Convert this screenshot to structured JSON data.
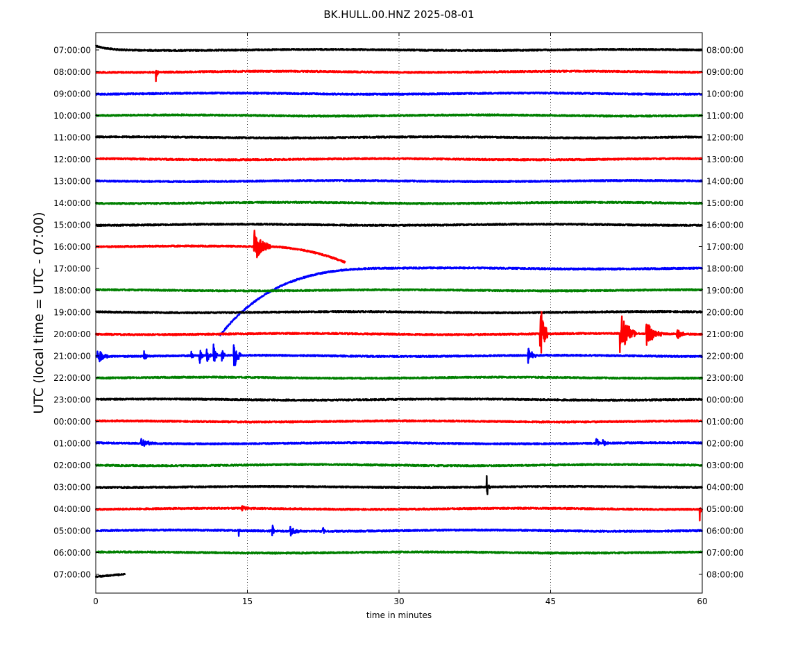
{
  "chart_data": {
    "type": "line",
    "title": "BK.HULL.00.HNZ 2025-08-01",
    "xlabel": "time in minutes",
    "ylabel": "UTC (local time = UTC - 07:00)",
    "xlim": [
      0,
      60
    ],
    "x_ticks": [
      0,
      15,
      30,
      45,
      60
    ],
    "grid": "vertical dotted lines at 15, 30, 45",
    "legend": "none",
    "colors": [
      "#000000",
      "#ff0000",
      "#0000ff",
      "#008000"
    ],
    "left_labels": [
      "07:00:00",
      "08:00:00",
      "09:00:00",
      "10:00:00",
      "11:00:00",
      "12:00:00",
      "13:00:00",
      "14:00:00",
      "15:00:00",
      "16:00:00",
      "17:00:00",
      "18:00:00",
      "19:00:00",
      "20:00:00",
      "21:00:00",
      "22:00:00",
      "23:00:00",
      "00:00:00",
      "01:00:00",
      "02:00:00",
      "03:00:00",
      "04:00:00",
      "05:00:00",
      "06:00:00",
      "07:00:00"
    ],
    "right_labels": [
      "08:00:00",
      "09:00:00",
      "10:00:00",
      "11:00:00",
      "12:00:00",
      "13:00:00",
      "14:00:00",
      "15:00:00",
      "16:00:00",
      "17:00:00",
      "18:00:00",
      "19:00:00",
      "20:00:00",
      "21:00:00",
      "22:00:00",
      "23:00:00",
      "00:00:00",
      "01:00:00",
      "02:00:00",
      "03:00:00",
      "04:00:00",
      "05:00:00",
      "06:00:00",
      "07:00:00",
      "08:00:00"
    ],
    "series": [
      {
        "label": "07:00:00",
        "color": "#000000",
        "events": []
      },
      {
        "label": "08:00:00",
        "color": "#ff0000",
        "events": [
          {
            "t": 6.0,
            "amp": 0.3,
            "dur": 0.2
          }
        ]
      },
      {
        "label": "09:00:00",
        "color": "#0000ff",
        "events": []
      },
      {
        "label": "10:00:00",
        "color": "#008000",
        "events": []
      },
      {
        "label": "11:00:00",
        "color": "#000000",
        "events": []
      },
      {
        "label": "12:00:00",
        "color": "#ff0000",
        "events": []
      },
      {
        "label": "13:00:00",
        "color": "#0000ff",
        "events": []
      },
      {
        "label": "14:00:00",
        "color": "#008000",
        "events": []
      },
      {
        "label": "15:00:00",
        "color": "#000000",
        "events": []
      },
      {
        "label": "16:00:00",
        "color": "#ff0000",
        "end_minute": 24.7,
        "events": [
          {
            "t": 15.7,
            "amp": 0.75,
            "dur": 1.6
          }
        ]
      },
      {
        "label": "17:00:00",
        "color": "#0000ff",
        "start_minute": 12.3,
        "events": []
      },
      {
        "label": "18:00:00",
        "color": "#008000",
        "events": []
      },
      {
        "label": "19:00:00",
        "color": "#000000",
        "events": []
      },
      {
        "label": "20:00:00",
        "color": "#ff0000",
        "events": [
          {
            "t": 44.0,
            "amp": 1.5,
            "dur": 0.7
          },
          {
            "t": 51.9,
            "amp": 1.1,
            "dur": 1.5
          },
          {
            "t": 54.5,
            "amp": 0.55,
            "dur": 1.5
          },
          {
            "t": 57.5,
            "amp": 0.3,
            "dur": 0.8
          }
        ]
      },
      {
        "label": "21:00:00",
        "color": "#0000ff",
        "events": [
          {
            "t": 0.2,
            "amp": 0.4,
            "dur": 1.0
          },
          {
            "t": 4.8,
            "amp": 0.2,
            "dur": 0.5
          },
          {
            "t": 9.5,
            "amp": 0.25,
            "dur": 0.2
          },
          {
            "t": 10.3,
            "amp": 0.4,
            "dur": 0.3
          },
          {
            "t": 11.0,
            "amp": 0.35,
            "dur": 0.4
          },
          {
            "t": 11.7,
            "amp": 0.45,
            "dur": 0.4
          },
          {
            "t": 12.5,
            "amp": 0.3,
            "dur": 0.3
          },
          {
            "t": 13.7,
            "amp": 0.6,
            "dur": 0.7
          },
          {
            "t": 42.8,
            "amp": 0.35,
            "dur": 0.8
          }
        ]
      },
      {
        "label": "22:00:00",
        "color": "#008000",
        "events": []
      },
      {
        "label": "23:00:00",
        "color": "#000000",
        "events": []
      },
      {
        "label": "00:00:00",
        "color": "#ff0000",
        "events": []
      },
      {
        "label": "01:00:00",
        "color": "#0000ff",
        "events": [
          {
            "t": 4.5,
            "amp": 0.2,
            "dur": 1.5
          },
          {
            "t": 49.5,
            "amp": 0.5,
            "dur": 0.3
          },
          {
            "t": 50.2,
            "amp": 0.2,
            "dur": 0.5
          }
        ]
      },
      {
        "label": "02:00:00",
        "color": "#008000",
        "events": []
      },
      {
        "label": "03:00:00",
        "color": "#000000",
        "events": [
          {
            "t": 38.7,
            "amp": 0.55,
            "dur": 0.3
          }
        ]
      },
      {
        "label": "04:00:00",
        "color": "#ff0000",
        "events": [
          {
            "t": 14.5,
            "amp": 0.12,
            "dur": 1.0
          },
          {
            "t": 59.8,
            "amp": 0.5,
            "dur": 0.2
          }
        ]
      },
      {
        "label": "05:00:00",
        "color": "#0000ff",
        "events": [
          {
            "t": 14.2,
            "amp": 0.2,
            "dur": 0.2
          },
          {
            "t": 17.5,
            "amp": 0.25,
            "dur": 0.3
          },
          {
            "t": 19.3,
            "amp": 0.22,
            "dur": 1.0
          },
          {
            "t": 22.5,
            "amp": 0.2,
            "dur": 0.2
          }
        ]
      },
      {
        "label": "06:00:00",
        "color": "#008000",
        "events": []
      },
      {
        "label": "07:00:00",
        "color": "#000000",
        "end_minute": 2.9,
        "events": []
      }
    ]
  }
}
